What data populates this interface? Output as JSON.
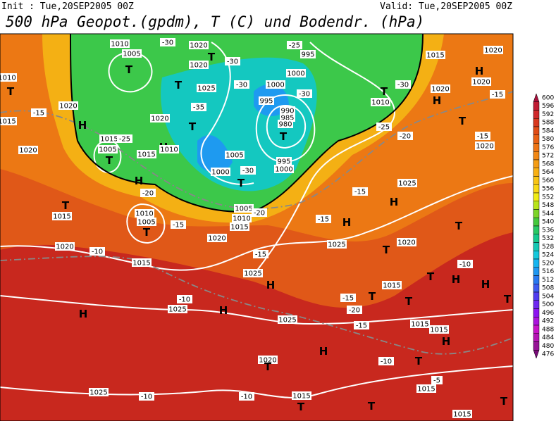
{
  "header": {
    "init": "Init : Tue,20SEP2005 00Z",
    "valid": "Valid: Tue,20SEP2005 00Z",
    "title": "500 hPa Geopot.(gpdm), T (C) und Bodendr. (hPa)"
  },
  "colorbar": {
    "labels": [
      600,
      596,
      592,
      588,
      584,
      580,
      576,
      572,
      568,
      564,
      560,
      556,
      552,
      548,
      544,
      540,
      536,
      532,
      528,
      524,
      520,
      516,
      512,
      508,
      504,
      500,
      496,
      492,
      488,
      484,
      480,
      476
    ],
    "colors": [
      "#a8103c",
      "#c01c34",
      "#d0282a",
      "#d8381e",
      "#e04c16",
      "#e86014",
      "#ee7414",
      "#f28814",
      "#f49c14",
      "#f8b014",
      "#f8c414",
      "#f8d814",
      "#f0ec14",
      "#b8e418",
      "#7cd428",
      "#44c83c",
      "#28c864",
      "#14c88c",
      "#14c8b4",
      "#14c8dc",
      "#14b4f0",
      "#1e96f0",
      "#2878f0",
      "#3c5af0",
      "#503cf0",
      "#6e28f0",
      "#8c14f0",
      "#aa14dc",
      "#c814c8",
      "#b414b4",
      "#961496",
      "#780a78"
    ]
  },
  "map_labels": [
    "1010",
    "1005",
    "T",
    "1020",
    "T",
    "-30",
    "1020",
    "-30",
    "995",
    "-25",
    "1000",
    "1000",
    "-30",
    "T",
    "1025",
    "995",
    "-30",
    "1010",
    "T",
    "-30",
    "1015",
    "1020",
    "H",
    "1020",
    "-15",
    "1020",
    "H",
    "990",
    "985",
    "980",
    "T",
    "T",
    "-35",
    "1020",
    "H",
    "1010",
    "1005",
    "1000",
    "-30",
    "T",
    "995",
    "1000",
    "-25",
    "-20",
    "T",
    "-15",
    "1020",
    "1015",
    "1005",
    "T",
    "-25",
    "1015",
    "H",
    "-20",
    "T",
    "1015",
    "1020",
    "H",
    "-15",
    "1020",
    "1015",
    "1010",
    "T",
    "1010",
    "1005",
    "T",
    "-15",
    "1020",
    "1020",
    "-10",
    "1015",
    "1005",
    "1010",
    "1015",
    "-20",
    "-15",
    "1025",
    "H",
    "-15",
    "H",
    "-15",
    "1025",
    "1025",
    "T",
    "1020",
    "T",
    "H",
    "-10",
    "1025",
    "H",
    "H",
    "1025",
    "1015",
    "T",
    "-15",
    "-20",
    "T",
    "H",
    "H",
    "-10",
    "-15",
    "T",
    "T",
    "1015",
    "1015",
    "H",
    "H",
    "-10",
    "T",
    "1020",
    "T",
    "1025",
    "-10",
    "1015",
    "T",
    "-10",
    "T",
    "1015",
    "-5",
    "T",
    "1015"
  ]
}
